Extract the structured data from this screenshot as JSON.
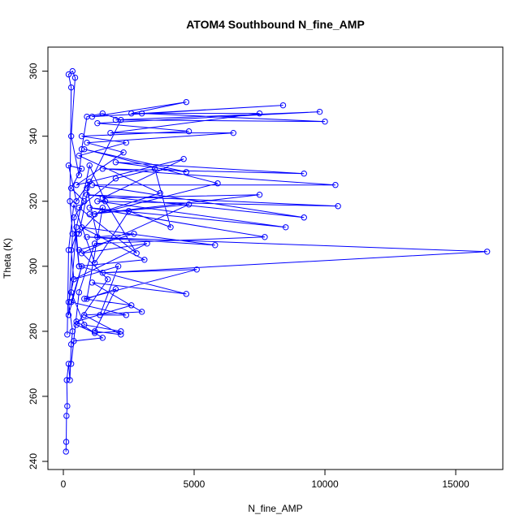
{
  "chart_data": {
    "type": "line",
    "title": "ATOM4 Southbound N_fine_AMP",
    "x_label": "N_fine_AMP",
    "y_label": "Theta (K)",
    "xlim": [
      -590,
      16800
    ],
    "ylim": [
      237.5,
      367.4
    ],
    "xticks": [
      0,
      5000,
      10000,
      15000
    ],
    "yticks": [
      240,
      260,
      280,
      300,
      320,
      340,
      360
    ],
    "x": [
      100,
      110,
      120,
      150,
      130,
      200,
      250,
      300,
      350,
      200,
      400,
      300,
      500,
      600,
      400,
      800,
      300,
      700,
      200,
      500,
      1000,
      600,
      1500,
      900,
      2000,
      1200,
      2200,
      800,
      3000,
      1100,
      4700,
      600,
      3100,
      700,
      5800,
      900,
      16200,
      1500,
      5100,
      800,
      2600,
      500,
      1500,
      400,
      300,
      600,
      1200,
      7700,
      1000,
      8500,
      1300,
      10500,
      900,
      9200,
      1100,
      10400,
      1500,
      9200,
      2000,
      4700,
      800,
      5900,
      1200,
      3700,
      600,
      2400,
      700,
      4800,
      1300,
      9800,
      2000,
      10000,
      3000,
      8400,
      1100,
      4700,
      2600,
      7500,
      1800,
      6500,
      900,
      2300,
      500,
      4600,
      1500,
      7500,
      1000,
      4800,
      700,
      3200,
      400,
      2100,
      1400,
      2400,
      300,
      700,
      200,
      350,
      250,
      300,
      200,
      350,
      450,
      300,
      600,
      700,
      900,
      1500,
      2200,
      900,
      1300,
      2700,
      600,
      1700,
      500,
      1200,
      2200,
      800,
      300,
      500,
      1000,
      1600,
      2800,
      600,
      2000,
      3500,
      4100,
      2500,
      1200,
      400,
      200,
      150
    ],
    "series": [
      {
        "name": "N_fine_AMP",
        "color": "#0000ff",
        "values": [
          243,
          246,
          254,
          257,
          265,
          270,
          265,
          276,
          280,
          289,
          296,
          305,
          310,
          300,
          315,
          320,
          324,
          330,
          331,
          320,
          326,
          310,
          318,
          290,
          293,
          280,
          279,
          285,
          286,
          295,
          291.5,
          300,
          302,
          312,
          306.5,
          309,
          304.5,
          298,
          299,
          290,
          288,
          283,
          278,
          277,
          270,
          292,
          307,
          309,
          318,
          312,
          320,
          318.5,
          322,
          315,
          325,
          325,
          330,
          328.5,
          332,
          329,
          336,
          325.5,
          316,
          322.5,
          334,
          338,
          340,
          341.5,
          344,
          347.5,
          345,
          344.5,
          347,
          349.5,
          346,
          350.5,
          347,
          347,
          341,
          341,
          338,
          335,
          325,
          333,
          321,
          322,
          316,
          319,
          304,
          307,
          296,
          300,
          285,
          285,
          289,
          300,
          285,
          310,
          320,
          355,
          359,
          360,
          358,
          340,
          328,
          336,
          346,
          347,
          345,
          324,
          309,
          310,
          305,
          296,
          282,
          279.5,
          280,
          282,
          292,
          312,
          331,
          320,
          304,
          318,
          327,
          330,
          312,
          317,
          301,
          319,
          305,
          279
        ]
      }
    ]
  }
}
